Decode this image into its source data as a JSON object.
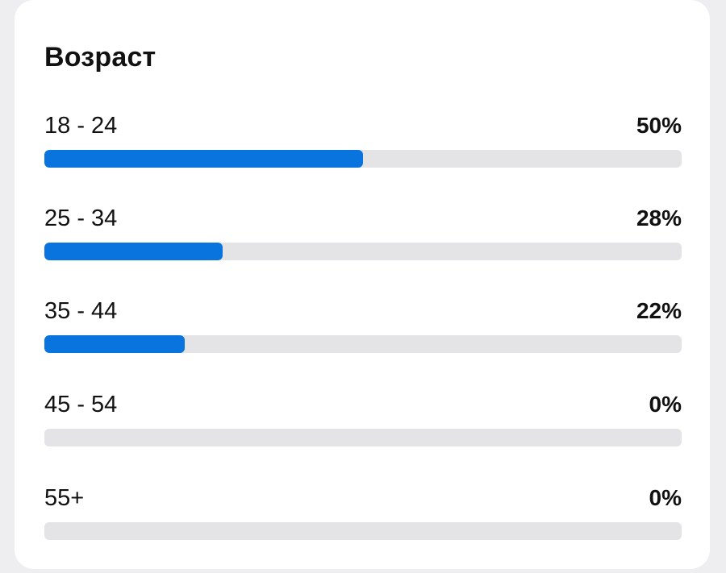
{
  "card": {
    "title": "Возраст"
  },
  "age_groups": [
    {
      "label": "18 - 24",
      "percent_text": "50%",
      "fraction": 0.5
    },
    {
      "label": "25 - 34",
      "percent_text": "28%",
      "fraction": 0.28
    },
    {
      "label": "35 - 44",
      "percent_text": "22%",
      "fraction": 0.22
    },
    {
      "label": "45 - 54",
      "percent_text": "0%",
      "fraction": 0.0
    },
    {
      "label": "55+",
      "percent_text": "0%",
      "fraction": 0.0
    }
  ],
  "colors": {
    "bar_fill": "#0a74de",
    "bar_track": "#e4e4e6"
  }
}
